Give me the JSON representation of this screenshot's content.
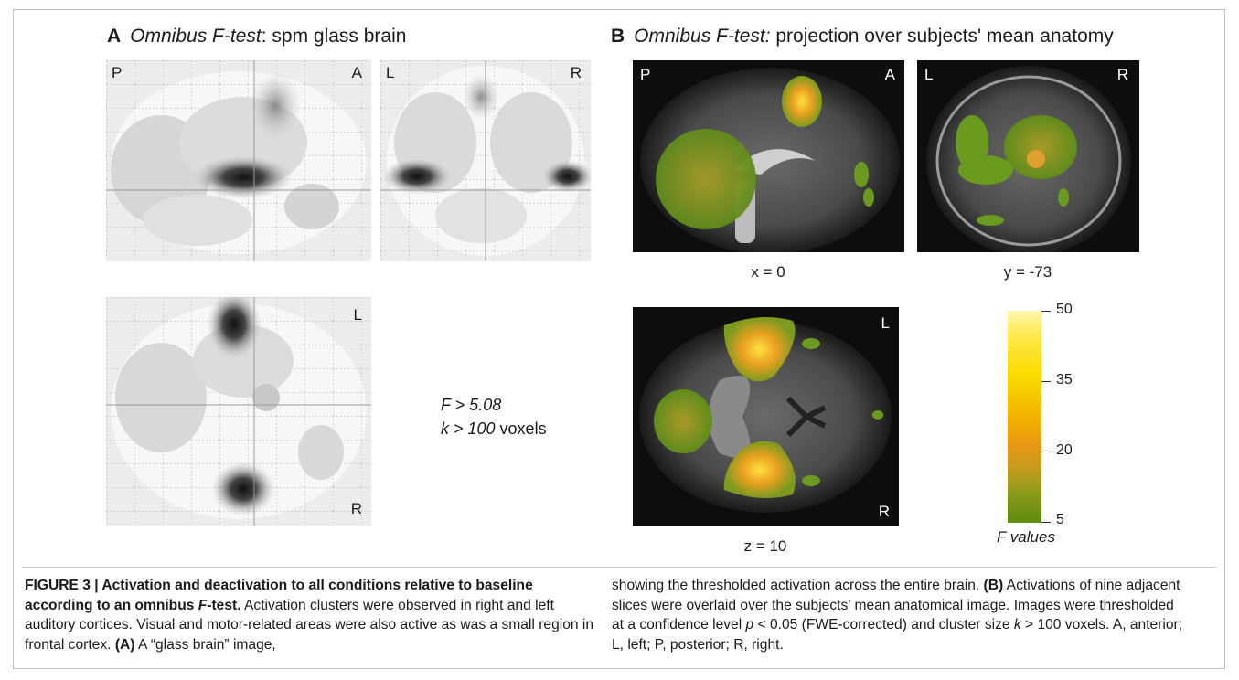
{
  "panel_a": {
    "letter": "A",
    "title_italic": "Omnibus F-test",
    "title_rest": ": spm glass brain",
    "sagittal": {
      "corner_left": "P",
      "corner_right": "A"
    },
    "coronal": {
      "corner_left": "L",
      "corner_right": "R"
    },
    "axial": {
      "corner_top": "L",
      "corner_bottom": "R"
    },
    "threshold": {
      "f_expr": "F > 5.08",
      "k_expr": "k > 100",
      "k_unit": " voxels"
    }
  },
  "panel_b": {
    "letter": "B",
    "title_italic": "Omnibus F-test:",
    "title_rest": " projection over subjects' mean anatomy",
    "sagittal": {
      "corner_left": "P",
      "corner_right": "A",
      "coord": "x = 0"
    },
    "coronal": {
      "corner_left": "L",
      "corner_right": "R",
      "coord": "y = -73"
    },
    "axial": {
      "corner_top": "L",
      "corner_bottom": "R",
      "coord": "z = 10"
    },
    "colorbar": {
      "title": "F values",
      "ticks": [
        "50",
        "35",
        "20",
        "5"
      ],
      "range": [
        5,
        50
      ]
    }
  },
  "caption": {
    "label": "FIGURE 3 | Activation and deactivation to all conditions relative to baseline according to an omnibus ",
    "label_italic": "F",
    "label_end": "-test.",
    "left_text": " Activation clusters were observed in right and left auditory cortices. Visual and motor-related areas were also active as was a small region in frontal cortex. ",
    "left_a_ref": "(A)",
    "left_end": " A “glass brain” image,",
    "right_start": "showing the thresholded activation across the entire brain. ",
    "right_b_ref": "(B)",
    "right_mid": " Activations of nine adjacent slices were overlaid over the subjects’ mean anatomical image. Images were thresholded at a confidence level ",
    "right_p": "p",
    "right_p_expr": " < 0.05 (FWE-corrected) and cluster size ",
    "right_k": "k",
    "right_end": " > 100 voxels. A, anterior; L, left; P, posterior; R, right."
  }
}
